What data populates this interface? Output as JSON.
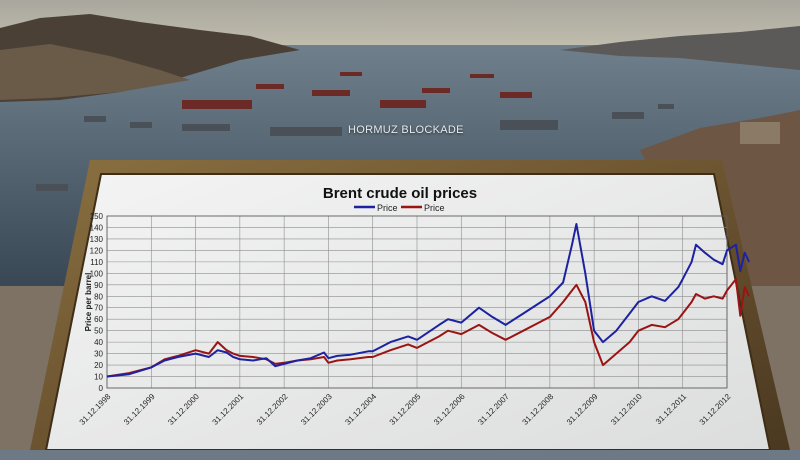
{
  "scene": {
    "caption": "HORMUZ BLOCKADE"
  },
  "chart_data": {
    "type": "line",
    "title": "Brent crude oil prices",
    "ylabel": "Price per barrel",
    "xlabel": "",
    "ylim": [
      0,
      150
    ],
    "yticks": [
      0,
      10,
      20,
      30,
      40,
      50,
      60,
      70,
      80,
      90,
      100,
      110,
      120,
      130,
      140,
      150
    ],
    "x_ticks": [
      "31.12.1998",
      "31.12.1999",
      "31.12.2000",
      "31.12.2001",
      "31.12.2002",
      "31.12.2003",
      "31.12.2004",
      "31.12.2005",
      "31.12.2006",
      "31.12.2007",
      "31.12.2008",
      "31.12.2009",
      "31.12.2010",
      "31.12.2011",
      "31.12.2012"
    ],
    "grid": true,
    "legend": "top-center",
    "series": [
      {
        "name": "Price",
        "color": "#1c22a0",
        "x": [
          1998.0,
          1998.5,
          1999.0,
          1999.3,
          1999.6,
          2000.0,
          2000.3,
          2000.5,
          2000.7,
          2000.85,
          2001.0,
          2001.3,
          2001.6,
          2001.8,
          2002.0,
          2002.3,
          2002.6,
          2002.9,
          2003.0,
          2003.2,
          2003.5,
          2003.9,
          2004.0,
          2004.4,
          2004.8,
          2005.0,
          2005.5,
          2005.7,
          2006.0,
          2006.4,
          2006.7,
          2007.0,
          2007.4,
          2007.8,
          2008.0,
          2008.3,
          2008.5,
          2008.6,
          2008.8,
          2009.0,
          2009.2,
          2009.5,
          2009.8,
          2010.0,
          2010.3,
          2010.6,
          2010.9,
          2011.0,
          2011.2,
          2011.3,
          2011.5,
          2011.7,
          2011.9,
          2012.0,
          2012.2,
          2012.3,
          2012.4,
          2012.5
        ],
        "values": [
          10,
          12,
          18,
          24,
          27,
          30,
          27,
          33,
          31,
          27,
          25,
          24,
          26,
          19,
          21,
          24,
          26,
          31,
          26,
          28,
          29,
          32,
          32,
          40,
          45,
          42,
          55,
          60,
          57,
          70,
          62,
          55,
          65,
          75,
          80,
          92,
          125,
          143,
          100,
          50,
          40,
          50,
          65,
          75,
          80,
          76,
          88,
          95,
          110,
          125,
          118,
          112,
          108,
          120,
          125,
          102,
          118,
          110
        ]
      },
      {
        "name": "Price",
        "color": "#9a1414",
        "x": [
          1998.0,
          1998.5,
          1999.0,
          1999.3,
          1999.6,
          2000.0,
          2000.3,
          2000.5,
          2000.7,
          2000.85,
          2001.0,
          2001.3,
          2001.6,
          2001.8,
          2002.0,
          2002.3,
          2002.6,
          2002.9,
          2003.0,
          2003.2,
          2003.5,
          2003.9,
          2004.0,
          2004.4,
          2004.8,
          2005.0,
          2005.5,
          2005.7,
          2006.0,
          2006.4,
          2006.7,
          2007.0,
          2007.4,
          2007.8,
          2008.0,
          2008.3,
          2008.5,
          2008.6,
          2008.8,
          2009.0,
          2009.2,
          2009.5,
          2009.8,
          2010.0,
          2010.3,
          2010.6,
          2010.9,
          2011.0,
          2011.2,
          2011.3,
          2011.5,
          2011.7,
          2011.9,
          2012.0,
          2012.2,
          2012.3,
          2012.4,
          2012.5
        ],
        "values": [
          10,
          13,
          18,
          25,
          28,
          33,
          30,
          40,
          33,
          30,
          28,
          27,
          25,
          21,
          22,
          24,
          25,
          27,
          22,
          24,
          25,
          27,
          27,
          33,
          38,
          35,
          45,
          50,
          47,
          55,
          48,
          42,
          50,
          58,
          62,
          75,
          85,
          90,
          75,
          40,
          20,
          30,
          40,
          50,
          55,
          53,
          60,
          65,
          75,
          82,
          78,
          80,
          78,
          85,
          95,
          63,
          88,
          80
        ]
      }
    ]
  }
}
